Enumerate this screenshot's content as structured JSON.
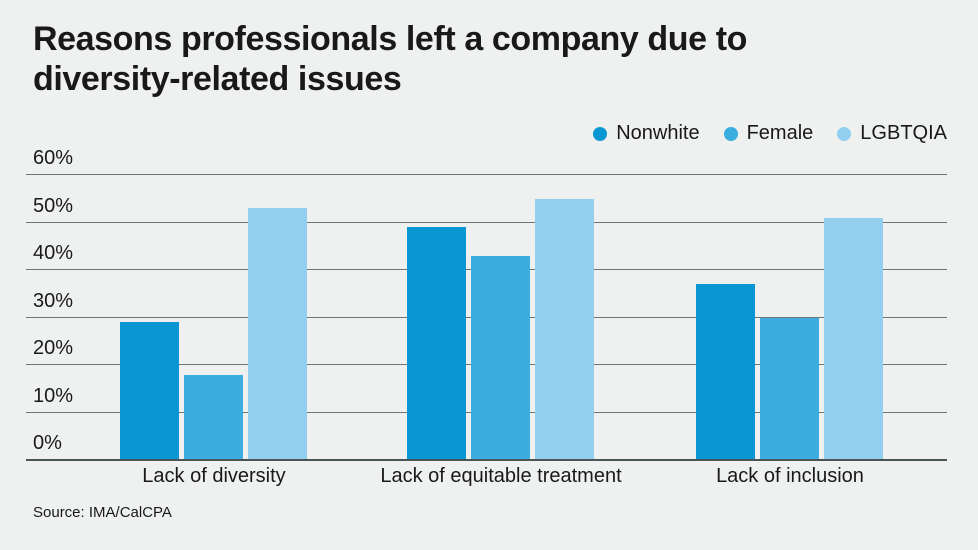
{
  "title": {
    "full": "Reasons professionals left a company due to diversity-related issues",
    "lines": [
      "Reasons professionals left a company due to",
      "diversity-related issues"
    ]
  },
  "source": "Source: IMA/CalCPA",
  "colors": {
    "background": "#eff1f1",
    "title_text": "#191919",
    "gridline": "#6d7575",
    "axis_line": "#4a5454"
  },
  "chart_data": {
    "type": "bar",
    "title": "Reasons professionals left a company due to diversity-related issues",
    "categories": [
      "Lack of diversity",
      "Lack of equitable treatment",
      "Lack of inclusion"
    ],
    "series": [
      {
        "name": "Nonwhite",
        "color": "#0a96d2",
        "values": [
          29,
          49,
          37
        ]
      },
      {
        "name": "Female",
        "color": "#3caddf",
        "values": [
          18,
          43,
          30
        ]
      },
      {
        "name": "LGBTQIA",
        "color": "#93cfee",
        "values": [
          53,
          55,
          51
        ]
      }
    ],
    "ylim": [
      0,
      60
    ],
    "ytick_step": 10,
    "ytick_suffix": "%",
    "grid": true,
    "legend_position": "top-right",
    "xlabel": "",
    "ylabel": "",
    "source": "Source: IMA/CalCPA"
  }
}
